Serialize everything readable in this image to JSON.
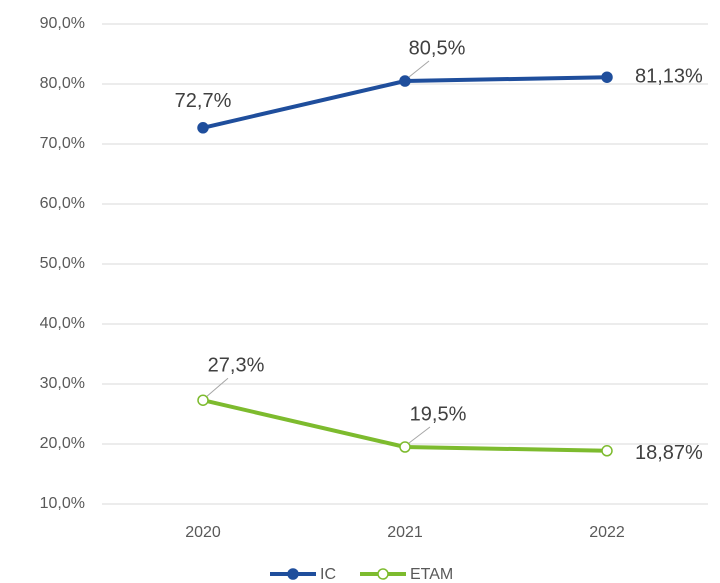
{
  "chart_data": {
    "type": "line",
    "categories": [
      "2020",
      "2021",
      "2022"
    ],
    "series": [
      {
        "name": "IC",
        "color": "#1f4e9c",
        "values": [
          72.7,
          80.5,
          81.13
        ],
        "value_labels": [
          "72,7%",
          "80,5%",
          "81,13%"
        ]
      },
      {
        "name": "ETAM",
        "color": "#7dbb2e",
        "values": [
          27.3,
          19.5,
          18.87
        ],
        "value_labels": [
          "27,3%",
          "19,5%",
          "18,87%"
        ]
      }
    ],
    "ylim": [
      10,
      90
    ],
    "yticks": [
      {
        "value": 10,
        "label": "10,0%"
      },
      {
        "value": 20,
        "label": "20,0%"
      },
      {
        "value": 30,
        "label": "30,0%"
      },
      {
        "value": 40,
        "label": "40,0%"
      },
      {
        "value": 50,
        "label": "50,0%"
      },
      {
        "value": 60,
        "label": "60,0%"
      },
      {
        "value": 70,
        "label": "70,0%"
      },
      {
        "value": 80,
        "label": "80,0%"
      },
      {
        "value": 90,
        "label": "90,0%"
      }
    ],
    "grid": true,
    "legend": "bottom"
  }
}
